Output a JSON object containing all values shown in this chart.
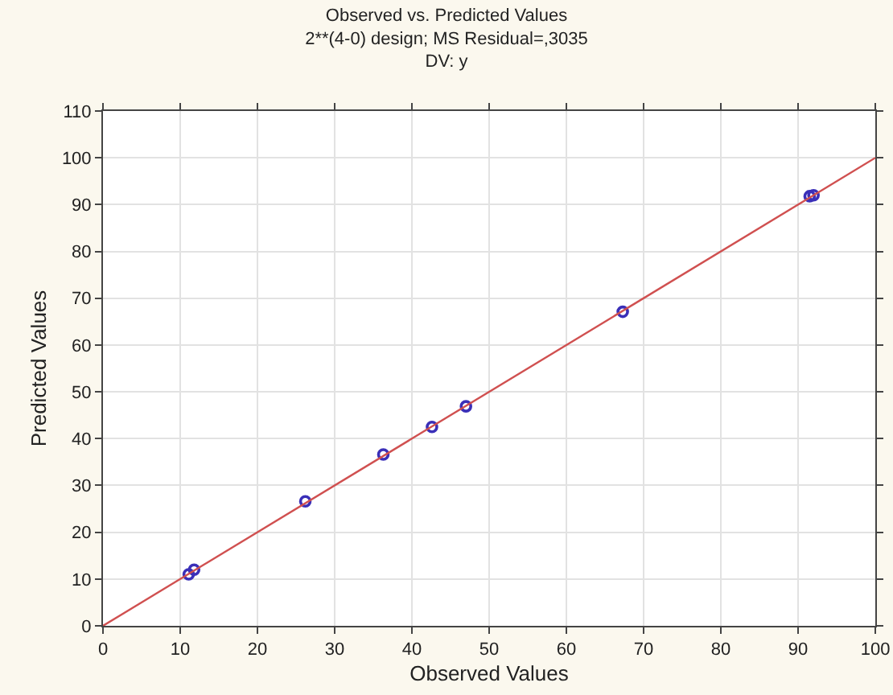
{
  "chart_data": {
    "type": "scatter",
    "title": "Observed vs. Predicted Values",
    "subtitle": "2**(4-0) design; MS Residual=,3035\nDV: y",
    "xlabel": "Observed Values",
    "ylabel": "Predicted Values",
    "series": [
      {
        "color": "#3a2fb8",
        "marker": "circle",
        "x": [
          11.1,
          11.8,
          26.2,
          36.3,
          42.6,
          47.0,
          67.3,
          91.5,
          92.0
        ],
        "values": [
          11.0,
          12.0,
          26.6,
          36.6,
          42.5,
          46.9,
          67.1,
          91.8,
          92.0
        ]
      },
      {
        "type": "line",
        "color": "#d05050",
        "marker": "none",
        "line_style": "solid",
        "x": [
          0,
          100
        ],
        "values": [
          0,
          100
        ]
      }
    ],
    "xlim": [
      0,
      100
    ],
    "ylim": [
      0,
      110
    ],
    "xticks": [
      0,
      10,
      20,
      30,
      40,
      50,
      60,
      70,
      80,
      90,
      100
    ],
    "yticks": [
      0,
      10,
      20,
      30,
      40,
      50,
      60,
      70,
      80,
      90,
      100,
      110
    ],
    "grid": true
  }
}
